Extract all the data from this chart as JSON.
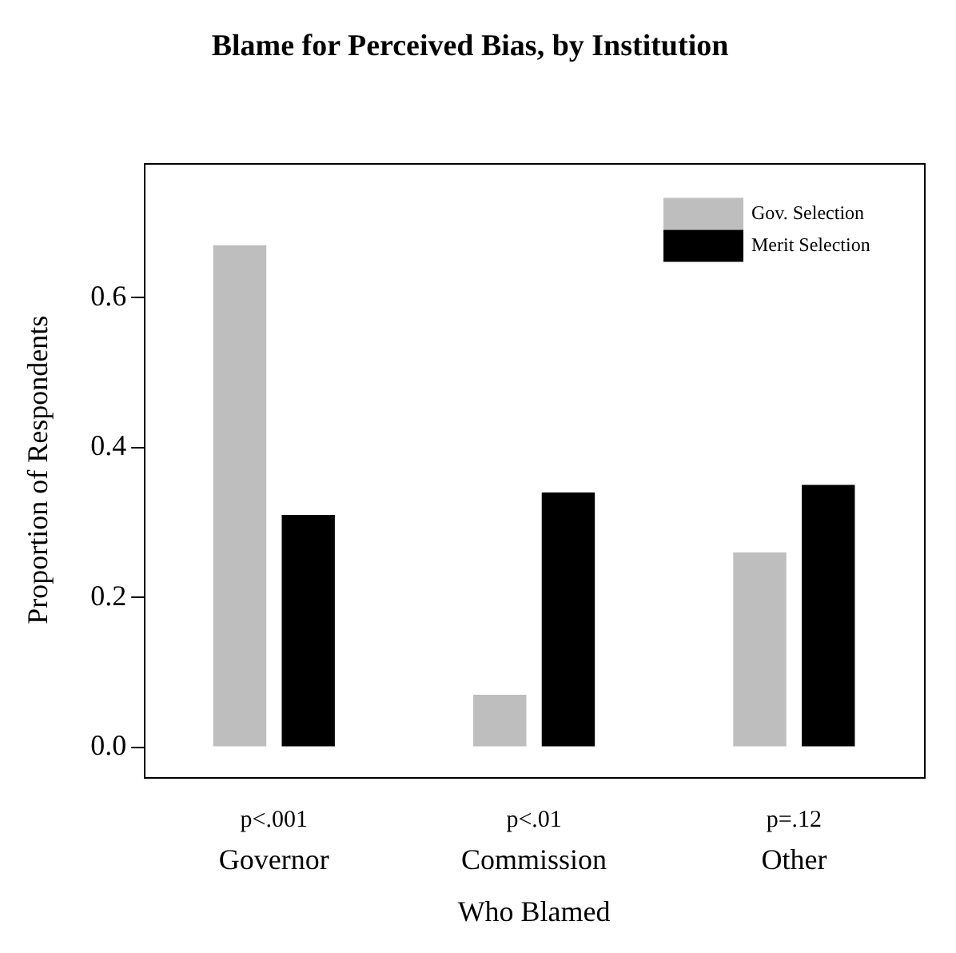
{
  "chart_data": {
    "type": "bar",
    "title": "Blame for Perceived Bias, by Institution",
    "xlabel": "Who Blamed",
    "ylabel": "Proportion of Respondents",
    "categories": [
      "Governor",
      "Commission",
      "Other"
    ],
    "series": [
      {
        "name": "Gov. Selection",
        "color": "#bebebe",
        "values": [
          0.67,
          0.07,
          0.26
        ]
      },
      {
        "name": "Merit Selection",
        "color": "#000000",
        "values": [
          0.31,
          0.34,
          0.35
        ]
      }
    ],
    "annotations": [
      "p<.001",
      "p<.01",
      "p=.12"
    ],
    "ylim": [
      -0.04,
      0.78
    ],
    "yticks": [
      {
        "value": 0,
        "label": "0.0"
      },
      {
        "value": 0.2,
        "label": "0.2"
      },
      {
        "value": 0.4,
        "label": "0.4"
      },
      {
        "value": 0.6,
        "label": "0.6"
      }
    ],
    "grid": false,
    "legend": "top right"
  }
}
